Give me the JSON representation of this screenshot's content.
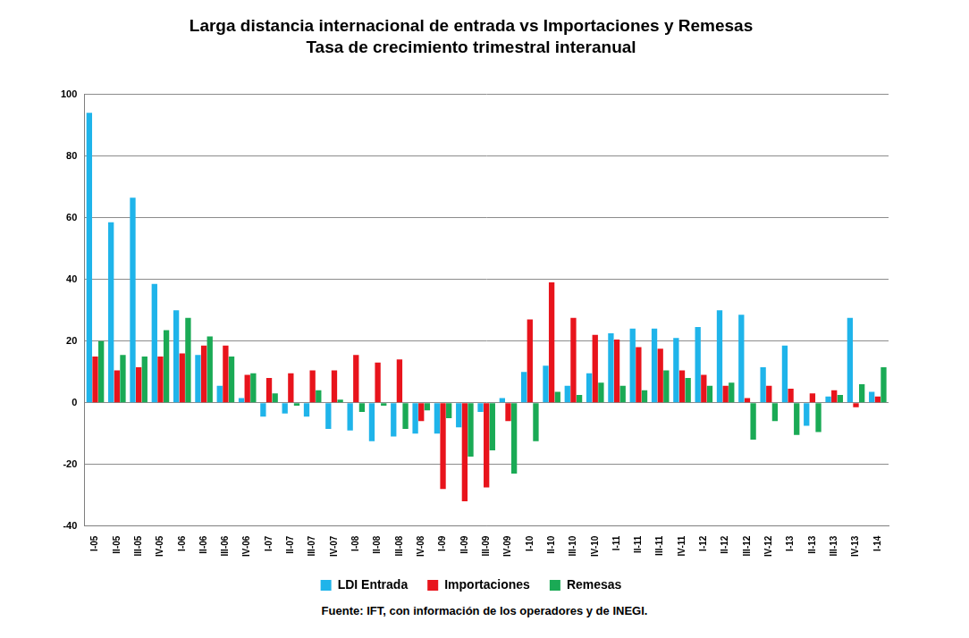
{
  "chart_data": {
    "type": "bar",
    "title": "Larga distancia internacional de entrada vs Importaciones y Remesas",
    "subtitle": "Tasa de crecimiento trimestral interanual",
    "source": "Fuente: IFT, con información de los operadores y de INEGI.",
    "categories": [
      "I-05",
      "II-05",
      "III-05",
      "IV-05",
      "I-06",
      "II-06",
      "III-06",
      "IV-06",
      "I-07",
      "II-07",
      "III-07",
      "IV-07",
      "I-08",
      "II-08",
      "III-08",
      "IV-08",
      "I-09",
      "II-09",
      "III-09",
      "IV-09",
      "I-10",
      "II-10",
      "III-10",
      "IV-10",
      "I-11",
      "II-11",
      "III-11",
      "IV-11",
      "I-12",
      "II-12",
      "III-12",
      "IV-12",
      "I-13",
      "II-13",
      "III-13",
      "IV-13",
      "I-14"
    ],
    "series": [
      {
        "name": "LDI Entrada",
        "color": "#1fb4ea",
        "values": [
          94,
          58.5,
          66.5,
          38.5,
          30,
          15.5,
          5.5,
          1.5,
          -4.5,
          -3.5,
          -4.5,
          -8.5,
          -9,
          -12.5,
          -11,
          -10,
          -10,
          -8,
          -3,
          1.5,
          10,
          12,
          5.5,
          9.5,
          22.5,
          24,
          24,
          21,
          24.5,
          30,
          28.5,
          11.5,
          18.5,
          -7.5,
          2,
          27.5,
          3.5
        ]
      },
      {
        "name": "Importaciones",
        "color": "#e8141c",
        "values": [
          15,
          10.5,
          11.5,
          15,
          16,
          18.5,
          18.5,
          9,
          8,
          9.5,
          10.5,
          10.5,
          15.5,
          13,
          14,
          -6,
          -28,
          -32,
          -27.5,
          -6,
          27,
          39,
          27.5,
          22,
          20.5,
          18,
          17.5,
          10.5,
          9,
          5.5,
          1.5,
          5.5,
          4.5,
          3,
          4,
          -1.5,
          2
        ]
      },
      {
        "name": "Remesas",
        "color": "#1aaa55",
        "values": [
          20,
          15.5,
          15,
          23.5,
          27.5,
          21.5,
          15,
          9.5,
          3,
          -1,
          4,
          1,
          -3,
          -1,
          -8.5,
          -2.5,
          -5,
          -17.5,
          -15.5,
          -23,
          -12.5,
          3.5,
          2.5,
          6.5,
          5.5,
          4,
          10.5,
          8,
          5.5,
          6.5,
          -12,
          -6,
          -10.5,
          -9.5,
          2.5,
          6,
          11.5
        ]
      }
    ],
    "ylim": [
      -40,
      100
    ],
    "yticks": [
      -40,
      -20,
      0,
      20,
      40,
      60,
      80,
      100
    ],
    "grid": true,
    "legend": "bottom"
  }
}
